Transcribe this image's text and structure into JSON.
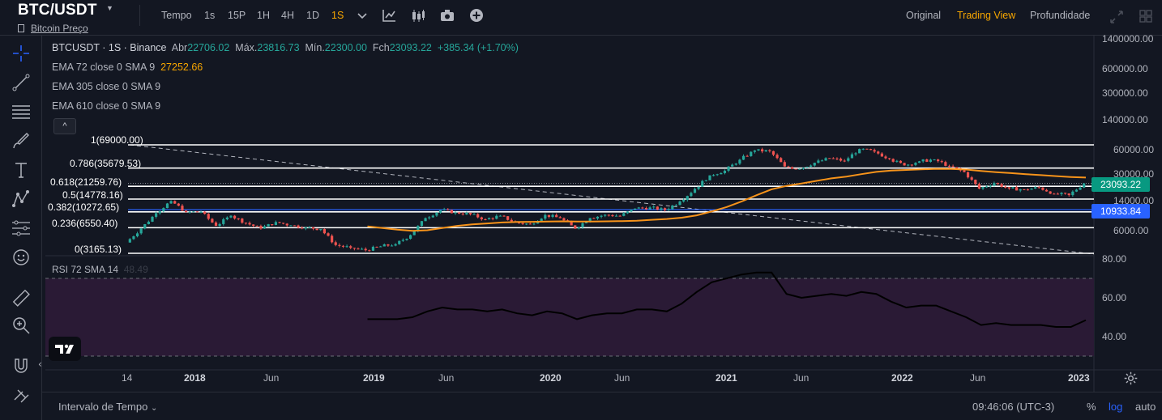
{
  "header": {
    "pair": "BTC/USDT",
    "subtitle": "Bitcoin Preço",
    "toolbar_items": [
      {
        "label": "Tempo",
        "active": false
      },
      {
        "label": "1s",
        "active": false
      },
      {
        "label": "15P",
        "active": false
      },
      {
        "label": "1H",
        "active": false
      },
      {
        "label": "4H",
        "active": false
      },
      {
        "label": "1D",
        "active": false
      },
      {
        "label": "1S",
        "active": true
      }
    ],
    "toolbar_icons": [
      "chevron-down-icon",
      "indicators-icon",
      "candles-icon",
      "camera-icon",
      "add-icon"
    ],
    "views": [
      {
        "label": "Original",
        "active": false
      },
      {
        "label": "Trading View",
        "active": true
      },
      {
        "label": "Profundidade",
        "active": false
      }
    ],
    "right_icons": [
      "fullscreen-icon",
      "layout-icon"
    ]
  },
  "left_toolbar": [
    "crosshair-icon",
    "trend-line-icon",
    "horizontal-lines-icon",
    "brush-icon",
    "text-icon",
    "pattern-icon",
    "prediction-icon",
    "emoji-icon",
    "ruler-icon",
    "zoom-icon",
    "magnet-icon",
    "lock-icon"
  ],
  "legend": {
    "pair_line": "BTCUSDT · 1S · Binance",
    "open_label": "Abr",
    "open": "22706.02",
    "high_label": "Máx.",
    "high": "23816.73",
    "low_label": "Mín.",
    "low": "22300.00",
    "close_label": "Fch",
    "close": "23093.22",
    "change": "+385.34 (+1.70%)",
    "ema1": "EMA 72 close 0 SMA 9",
    "ema1_value": "27252.66",
    "ema2": "EMA 305 close 0 SMA 9",
    "ema3": "EMA 610 close 0 SMA 9",
    "collapse": "^"
  },
  "fib_levels": [
    {
      "label": "1(69000.00)",
      "price": 69000
    },
    {
      "label": "0.786(35679.53)",
      "price": 35679.53
    },
    {
      "label": "0.618(21259.76)",
      "price": 21259.76
    },
    {
      "label": "0.5(14778.16)",
      "price": 14778.16
    },
    {
      "label": "0.382(10272.65)",
      "price": 10272.65
    },
    {
      "label": "0.236(6550.40)",
      "price": 6550.4
    },
    {
      "label": "0(3165.13)",
      "price": 3165.13
    }
  ],
  "price_axis": [
    "1400000.00",
    "600000.00",
    "300000.00",
    "140000.00",
    "60000.00",
    "30000.00",
    "14000.00",
    "6000.00"
  ],
  "price_tags": [
    {
      "value": "23093.22",
      "color": "#089981"
    },
    {
      "value": "10933.84",
      "color": "#2962ff"
    }
  ],
  "rsi": {
    "label": "RSI 72 SMA 14",
    "value": "48.49",
    "axis": [
      "80.00",
      "60.00",
      "40.00"
    ],
    "upper_band": 70,
    "lower_band": 30
  },
  "time_axis": [
    {
      "label": "14",
      "bold": false
    },
    {
      "label": "2018",
      "bold": true
    },
    {
      "label": "Jun",
      "bold": false
    },
    {
      "label": "2019",
      "bold": true
    },
    {
      "label": "Jun",
      "bold": false
    },
    {
      "label": "2020",
      "bold": true
    },
    {
      "label": "Jun",
      "bold": false
    },
    {
      "label": "2021",
      "bold": true
    },
    {
      "label": "Jun",
      "bold": false
    },
    {
      "label": "2022",
      "bold": true
    },
    {
      "label": "Jun",
      "bold": false
    },
    {
      "label": "2023",
      "bold": true
    }
  ],
  "bottom": {
    "interval": "Intervalo de Tempo",
    "time": "09:46:06 (UTC-3)",
    "percent": "%",
    "log": "log",
    "auto": "auto"
  },
  "colors": {
    "up": "#26a69a",
    "down": "#ef5350",
    "ema": "#f7931a",
    "accent": "#f7a600",
    "blue": "#2962ff",
    "rsi_line": "#000000",
    "rsi_band": "#2a1a35"
  },
  "chart_data": {
    "type": "candlestick",
    "scale": "log",
    "x": [
      "2017-09",
      "2017-10",
      "2017-11",
      "2017-12",
      "2018-01",
      "2018-02",
      "2018-03",
      "2018-04",
      "2018-05",
      "2018-06",
      "2018-07",
      "2018-08",
      "2018-09",
      "2018-10",
      "2018-11",
      "2018-12",
      "2019-01",
      "2019-02",
      "2019-03",
      "2019-04",
      "2019-05",
      "2019-06",
      "2019-07",
      "2019-08",
      "2019-09",
      "2019-10",
      "2019-11",
      "2019-12",
      "2020-01",
      "2020-02",
      "2020-03",
      "2020-04",
      "2020-05",
      "2020-06",
      "2020-07",
      "2020-08",
      "2020-09",
      "2020-10",
      "2020-11",
      "2020-12",
      "2021-01",
      "2021-02",
      "2021-03",
      "2021-04",
      "2021-05",
      "2021-06",
      "2021-07",
      "2021-08",
      "2021-09",
      "2021-10",
      "2021-11",
      "2021-12",
      "2022-01",
      "2022-02",
      "2022-03",
      "2022-04",
      "2022-05",
      "2022-06",
      "2022-07",
      "2022-08",
      "2022-09",
      "2022-10",
      "2022-11",
      "2022-12",
      "2023-01"
    ],
    "close": [
      4300,
      6400,
      9900,
      14000,
      10200,
      10300,
      6900,
      9200,
      7500,
      6400,
      7700,
      7000,
      6600,
      6300,
      4000,
      3700,
      3450,
      3850,
      4100,
      5300,
      8600,
      10800,
      10100,
      9600,
      8300,
      9200,
      7600,
      7200,
      9400,
      8600,
      6400,
      8600,
      9450,
      9150,
      11300,
      11650,
      10800,
      13800,
      19700,
      29000,
      33100,
      45200,
      58800,
      57700,
      37300,
      35000,
      41500,
      47100,
      43800,
      61300,
      57000,
      46300,
      38500,
      43200,
      45500,
      37600,
      31800,
      19900,
      23300,
      20000,
      19400,
      20500,
      17200,
      16550,
      23093
    ],
    "ema72": [
      null,
      null,
      null,
      null,
      null,
      null,
      null,
      null,
      null,
      null,
      null,
      null,
      null,
      null,
      null,
      null,
      6800,
      6500,
      6200,
      6000,
      6100,
      6500,
      6900,
      7200,
      7400,
      7600,
      7700,
      7750,
      7800,
      7850,
      7800,
      7800,
      7850,
      7900,
      8000,
      8200,
      8400,
      8700,
      9300,
      10400,
      11800,
      13800,
      16500,
      19500,
      21500,
      23000,
      24800,
      26600,
      28000,
      30000,
      32000,
      33200,
      33800,
      34400,
      34900,
      34800,
      34200,
      32900,
      31800,
      30900,
      30000,
      29200,
      28400,
      27700,
      27252.66
    ],
    "rsi72": [
      null,
      null,
      null,
      null,
      null,
      null,
      null,
      null,
      null,
      null,
      null,
      null,
      null,
      null,
      null,
      null,
      49,
      49,
      49,
      50,
      53,
      55,
      54,
      54,
      53,
      54,
      52,
      51,
      53,
      52,
      49,
      51,
      52,
      52,
      54,
      54,
      53,
      57,
      63,
      68,
      70,
      72,
      73,
      73,
      62,
      60,
      61,
      62,
      61,
      63,
      62,
      58,
      55,
      56,
      56,
      53,
      50,
      46,
      47,
      46,
      46,
      46,
      45,
      45,
      48.49
    ],
    "fib_retracement": [
      69000,
      35679.53,
      21259.76,
      14778.16,
      10272.65,
      6550.4,
      3165.13
    ],
    "ylim": [
      3000,
      1400000
    ]
  }
}
